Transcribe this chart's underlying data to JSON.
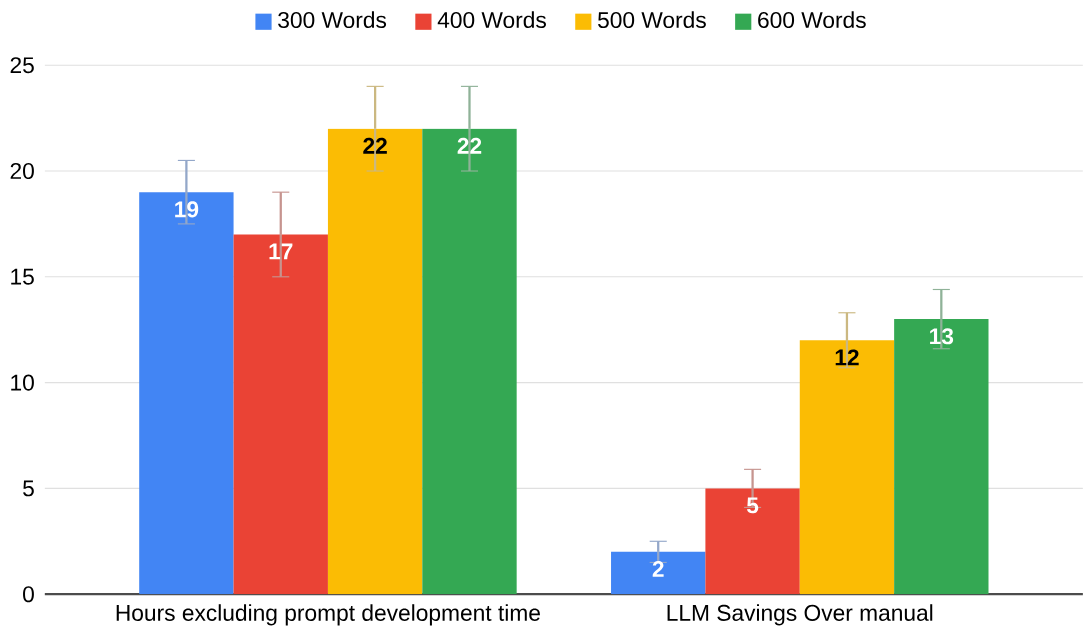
{
  "chart_data": {
    "type": "bar",
    "categories": [
      "Hours excluding prompt development time",
      "LLM Savings Over manual"
    ],
    "series": [
      {
        "name": "300 Words",
        "color": "#4285f4",
        "values": [
          19,
          2
        ],
        "errors": [
          1.5,
          0.5
        ]
      },
      {
        "name": "400 Words",
        "color": "#ea4335",
        "values": [
          17,
          5
        ],
        "errors": [
          2,
          0.9
        ]
      },
      {
        "name": "500 Words",
        "color": "#fbbc04",
        "values": [
          22,
          12
        ],
        "errors": [
          2,
          1.3
        ]
      },
      {
        "name": "600 Words",
        "color": "#34a853",
        "values": [
          22,
          13
        ],
        "errors": [
          2,
          1.4
        ]
      }
    ],
    "ylim": [
      0,
      25
    ],
    "yticks": [
      0,
      5,
      10,
      15,
      20,
      25
    ],
    "grid": "y",
    "legend": "top",
    "data_labels": true
  }
}
